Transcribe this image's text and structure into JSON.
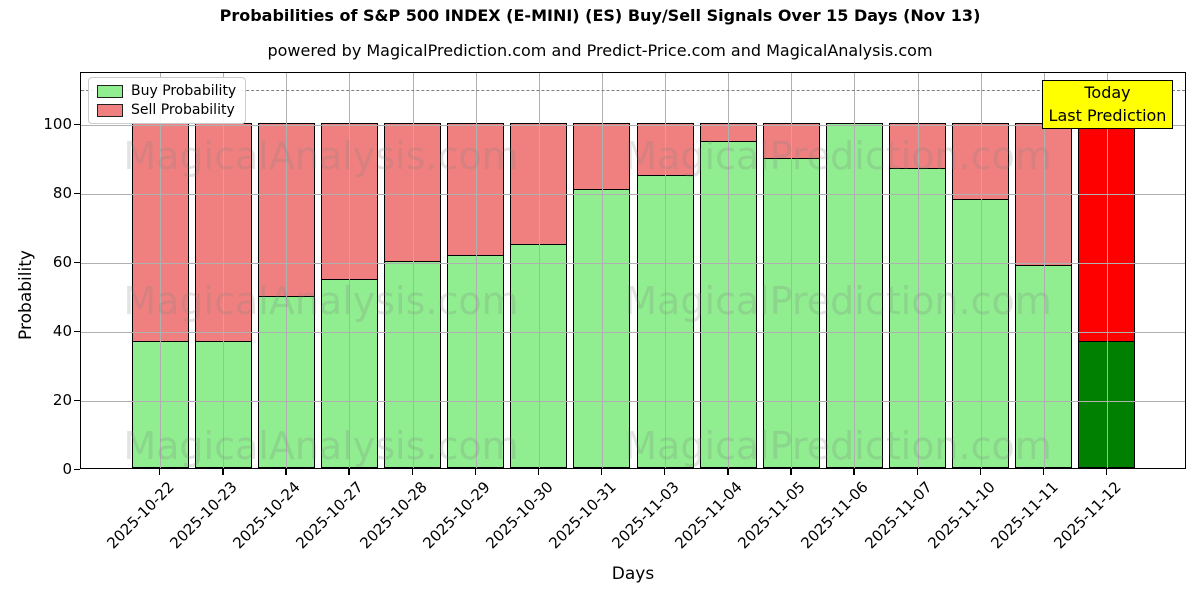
{
  "title": "Probabilities of S&P 500 INDEX (E-MINI) (ES) Buy/Sell Signals Over 15 Days (Nov 13)",
  "subtitle": "powered by MagicalPrediction.com and Predict-Price.com and MagicalAnalysis.com",
  "legend": {
    "items": [
      {
        "label": "Buy Probability",
        "color": "#90ee90"
      },
      {
        "label": "Sell Probability",
        "color": "#f08080"
      }
    ]
  },
  "annotation": {
    "line1": "Today",
    "line2": "Last Prediction",
    "bg_color": "#ffff00"
  },
  "watermarks": {
    "left_text": "MagicalAnalysis.com",
    "right_text": "MagicalPrediction.com",
    "color": "#808080"
  },
  "chart_data": {
    "type": "bar",
    "stacked": true,
    "title": "Probabilities of S&P 500 INDEX (E-MINI) (ES) Buy/Sell Signals Over 15 Days (Nov 13)",
    "xlabel": "Days",
    "ylabel": "Probability",
    "categories": [
      "2025-10-22",
      "2025-10-23",
      "2025-10-24",
      "2025-10-27",
      "2025-10-28",
      "2025-10-29",
      "2025-10-30",
      "2025-10-31",
      "2025-11-03",
      "2025-11-04",
      "2025-11-05",
      "2025-11-06",
      "2025-11-07",
      "2025-11-10",
      "2025-11-11",
      "2025-11-12"
    ],
    "series": [
      {
        "name": "Buy Probability",
        "color": "#90ee90",
        "today_color": "#008000",
        "values": [
          37,
          37,
          50,
          55,
          60,
          62,
          65,
          81,
          85,
          95,
          90,
          100,
          87,
          78,
          59,
          37
        ]
      },
      {
        "name": "Sell Probability",
        "color": "#f08080",
        "today_color": "#ff0000",
        "values": [
          63,
          63,
          50,
          45,
          40,
          38,
          35,
          19,
          15,
          5,
          10,
          0,
          13,
          22,
          41,
          63
        ]
      }
    ],
    "today_index": 15,
    "ylim": [
      0,
      115
    ],
    "yticks": [
      0,
      20,
      40,
      60,
      80,
      100
    ],
    "dashed_line_y": 110,
    "grid": true,
    "legend_position": "upper left",
    "bar_edge_color": "#000000",
    "grid_color": "#b0b0b0"
  }
}
